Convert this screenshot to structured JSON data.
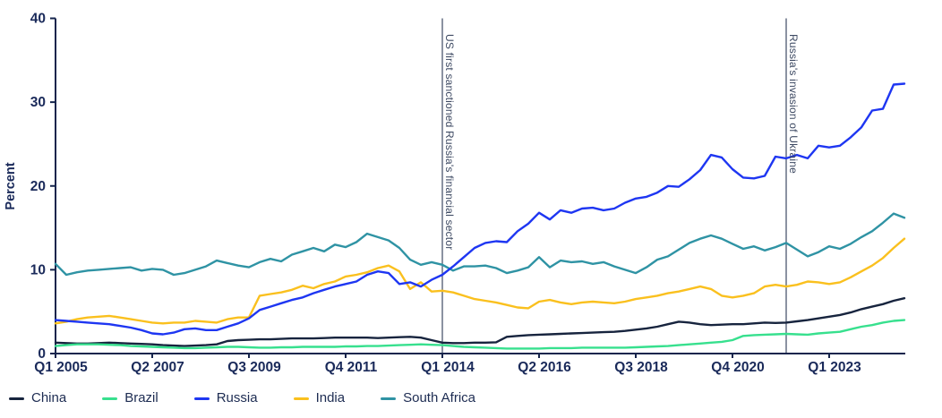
{
  "chart_data": {
    "type": "line",
    "title": "",
    "xlabel": "",
    "ylabel": "Percent",
    "ylim": [
      0,
      40
    ],
    "yticks": [
      0,
      10,
      20,
      30,
      40
    ],
    "x_frequency": "quarterly",
    "x_start": "Q1 2005",
    "x_end": "Q4 2024",
    "x_tick_labels": [
      "Q1 2005",
      "Q2 2007",
      "Q3 2009",
      "Q4 2011",
      "Q1 2014",
      "Q2 2016",
      "Q3 2018",
      "Q4 2020",
      "Q1 2023"
    ],
    "x_tick_indices": [
      0,
      9,
      18,
      27,
      36,
      45,
      54,
      63,
      72
    ],
    "grid": false,
    "legend_position": "bottom-left",
    "axis_color": "#15244C",
    "annotation_color": "#3E4A63",
    "series": [
      {
        "name": "China",
        "color": "#17243E",
        "values": [
          1.3,
          1.25,
          1.2,
          1.2,
          1.25,
          1.3,
          1.25,
          1.2,
          1.15,
          1.1,
          1.0,
          0.95,
          0.9,
          0.95,
          1.0,
          1.1,
          1.5,
          1.6,
          1.65,
          1.7,
          1.7,
          1.75,
          1.8,
          1.8,
          1.8,
          1.85,
          1.9,
          1.9,
          1.9,
          1.9,
          1.85,
          1.9,
          1.95,
          2.0,
          1.9,
          1.6,
          1.3,
          1.25,
          1.25,
          1.3,
          1.3,
          1.35,
          2.0,
          2.1,
          2.2,
          2.25,
          2.3,
          2.35,
          2.4,
          2.45,
          2.5,
          2.55,
          2.6,
          2.7,
          2.85,
          3.0,
          3.2,
          3.5,
          3.8,
          3.7,
          3.5,
          3.4,
          3.45,
          3.5,
          3.5,
          3.6,
          3.7,
          3.65,
          3.7,
          3.85,
          4.0,
          4.2,
          4.4,
          4.6,
          4.9,
          5.3,
          5.6,
          5.9,
          6.3,
          6.6
        ]
      },
      {
        "name": "Brazil",
        "color": "#37E08E",
        "values": [
          0.9,
          1.0,
          1.1,
          1.1,
          1.1,
          1.05,
          1.0,
          0.9,
          0.85,
          0.8,
          0.75,
          0.7,
          0.65,
          0.65,
          0.7,
          0.75,
          0.8,
          0.8,
          0.75,
          0.7,
          0.7,
          0.75,
          0.75,
          0.8,
          0.8,
          0.8,
          0.8,
          0.85,
          0.85,
          0.9,
          0.9,
          0.95,
          1.0,
          1.05,
          1.1,
          1.05,
          1.0,
          0.9,
          0.8,
          0.75,
          0.7,
          0.65,
          0.6,
          0.6,
          0.6,
          0.6,
          0.65,
          0.65,
          0.65,
          0.7,
          0.7,
          0.7,
          0.7,
          0.7,
          0.75,
          0.8,
          0.85,
          0.9,
          1.0,
          1.1,
          1.2,
          1.3,
          1.4,
          1.6,
          2.1,
          2.2,
          2.25,
          2.3,
          2.35,
          2.3,
          2.25,
          2.4,
          2.5,
          2.6,
          2.9,
          3.2,
          3.4,
          3.7,
          3.9,
          4.0
        ]
      },
      {
        "name": "Russia",
        "color": "#1E36F2",
        "values": [
          4.0,
          3.9,
          3.8,
          3.7,
          3.6,
          3.5,
          3.3,
          3.1,
          2.8,
          2.4,
          2.3,
          2.5,
          2.9,
          3.0,
          2.8,
          2.8,
          3.2,
          3.6,
          4.2,
          5.2,
          5.6,
          6.0,
          6.4,
          6.7,
          7.2,
          7.6,
          8.0,
          8.3,
          8.6,
          9.4,
          9.8,
          9.6,
          8.3,
          8.5,
          8.0,
          8.8,
          9.4,
          10.4,
          11.5,
          12.6,
          13.2,
          13.4,
          13.3,
          14.6,
          15.5,
          16.8,
          16.0,
          17.1,
          16.8,
          17.3,
          17.4,
          17.1,
          17.3,
          18.0,
          18.5,
          18.7,
          19.2,
          20.0,
          19.9,
          20.8,
          21.9,
          23.7,
          23.4,
          22.0,
          21.0,
          20.9,
          21.2,
          23.5,
          23.3,
          23.7,
          23.3,
          24.8,
          24.6,
          24.8,
          25.8,
          27.0,
          29.0,
          29.2,
          32.1,
          32.2
        ]
      },
      {
        "name": "India",
        "color": "#FAC01E",
        "values": [
          3.6,
          3.8,
          4.1,
          4.3,
          4.4,
          4.5,
          4.3,
          4.1,
          3.9,
          3.7,
          3.6,
          3.7,
          3.7,
          3.9,
          3.8,
          3.7,
          4.1,
          4.3,
          4.3,
          6.9,
          7.1,
          7.3,
          7.6,
          8.1,
          7.8,
          8.3,
          8.6,
          9.2,
          9.4,
          9.7,
          10.2,
          10.5,
          9.8,
          7.7,
          8.5,
          7.4,
          7.5,
          7.3,
          6.9,
          6.5,
          6.3,
          6.1,
          5.8,
          5.5,
          5.4,
          6.2,
          6.4,
          6.1,
          5.9,
          6.1,
          6.2,
          6.1,
          6.0,
          6.2,
          6.5,
          6.7,
          6.9,
          7.2,
          7.4,
          7.7,
          8.0,
          7.7,
          6.9,
          6.7,
          6.9,
          7.2,
          8.0,
          8.2,
          8.0,
          8.2,
          8.6,
          8.5,
          8.3,
          8.5,
          9.1,
          9.8,
          10.5,
          11.4,
          12.6,
          13.7
        ]
      },
      {
        "name": "South Africa",
        "color": "#2F93A4",
        "values": [
          10.7,
          9.4,
          9.7,
          9.9,
          10.0,
          10.1,
          10.2,
          10.3,
          9.9,
          10.1,
          10.0,
          9.4,
          9.6,
          10.0,
          10.4,
          11.1,
          10.8,
          10.5,
          10.3,
          10.9,
          11.3,
          11.0,
          11.8,
          12.2,
          12.6,
          12.2,
          13.0,
          12.7,
          13.3,
          14.3,
          13.9,
          13.5,
          12.6,
          11.2,
          10.6,
          10.9,
          10.6,
          9.9,
          10.4,
          10.4,
          10.5,
          10.2,
          9.6,
          9.9,
          10.3,
          11.5,
          10.3,
          11.1,
          10.9,
          11.0,
          10.7,
          10.9,
          10.4,
          10.0,
          9.6,
          10.3,
          11.2,
          11.6,
          12.4,
          13.2,
          13.7,
          14.1,
          13.7,
          13.1,
          12.5,
          12.8,
          12.3,
          12.7,
          13.2,
          12.4,
          11.6,
          12.1,
          12.8,
          12.5,
          13.1,
          13.9,
          14.6,
          15.6,
          16.7,
          16.2
        ]
      }
    ],
    "annotations": [
      {
        "label": "US first sanctioned Russia's financial sector",
        "x_index": 36,
        "x_label": "Q1 2014"
      },
      {
        "label": "Russia's invasion of Ukraine",
        "x_index": 68,
        "x_label": "Q1 2022"
      }
    ]
  }
}
